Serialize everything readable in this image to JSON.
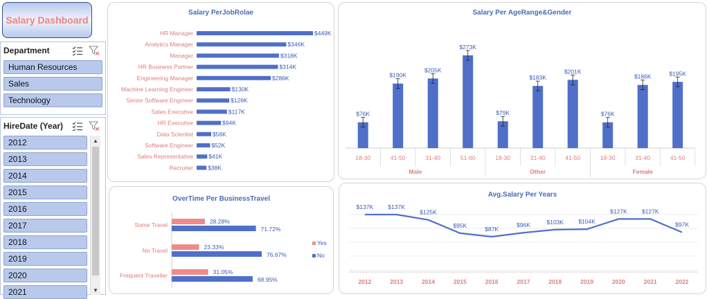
{
  "dashboard_title": "Salary Dashboard",
  "colors": {
    "blue": "#4f6fc8",
    "pink": "#f08a8a",
    "label_pink": "#e07b7b",
    "value_blue": "#3b5bb5"
  },
  "department_slicer": {
    "title": "Department",
    "items": [
      "Human Resources",
      "Sales",
      "Technology"
    ]
  },
  "hiredate_slicer": {
    "title": "HireDate (Year)",
    "items": [
      "2012",
      "2013",
      "2014",
      "2015",
      "2016",
      "2017",
      "2018",
      "2019",
      "2020",
      "2021"
    ]
  },
  "icons": {
    "multi_select": "multi-select-icon",
    "clear_filter": "clear-filter-icon"
  },
  "chart_data": [
    {
      "id": "job_role",
      "type": "bar",
      "orientation": "horizontal",
      "title": "Salary PerJobRolae",
      "categories": [
        "HR Manager",
        "Analytics Manager",
        "Manager",
        "HR Business Partner",
        "Engineering Manager",
        "Machine Learning Engineer",
        "Senior Software Engineer",
        "Sales Executive",
        "HR Executive",
        "Data Scientist",
        "Software Engineer",
        "Sales Representative",
        "Recruiter"
      ],
      "values": [
        449,
        346,
        318,
        314,
        286,
        130,
        126,
        117,
        94,
        56,
        52,
        41,
        38
      ],
      "value_labels": [
        "$449K",
        "$346K",
        "$318K",
        "$314K",
        "$286K",
        "$130K",
        "$126K",
        "$117K",
        "$94K",
        "$56K",
        "$52K",
        "$41K",
        "$38K"
      ]
    },
    {
      "id": "age_gender",
      "type": "bar",
      "title": "Salary Per AgeRange&Gender",
      "groups": [
        {
          "name": "Male",
          "categories": [
            "18-30",
            "41-50",
            "31-40",
            "51-60"
          ],
          "values": [
            76,
            190,
            205,
            273
          ],
          "value_labels": [
            "$76K",
            "$190K",
            "$205K",
            "$273K"
          ]
        },
        {
          "name": "Other",
          "categories": [
            "18-30",
            "31-40",
            "41-50"
          ],
          "values": [
            79,
            183,
            201
          ],
          "value_labels": [
            "$79K",
            "$183K",
            "$201K"
          ]
        },
        {
          "name": "Female",
          "categories": [
            "18-30",
            "31-40",
            "41-50"
          ],
          "values": [
            76,
            186,
            195
          ],
          "value_labels": [
            "$76K",
            "$186K",
            "$195K"
          ]
        }
      ],
      "error_bars": true
    },
    {
      "id": "overtime",
      "type": "bar",
      "orientation": "horizontal",
      "title": "OverTime Per BusinessTravel",
      "categories": [
        "Some Travel",
        "No Travel",
        "Frequent Traveller"
      ],
      "series": [
        {
          "name": "Yes",
          "values": [
            28.28,
            23.33,
            31.05
          ],
          "value_labels": [
            "28.28%",
            "23.33%",
            "31.05%"
          ]
        },
        {
          "name": "No",
          "values": [
            71.72,
            76.67,
            68.95
          ],
          "value_labels": [
            "71.72%",
            "76.67%",
            "68.95%"
          ]
        }
      ],
      "legend": "right"
    },
    {
      "id": "avg_salary",
      "type": "line",
      "title": "Avg.Salary Per Years",
      "x": [
        "2012",
        "2013",
        "2014",
        "2015",
        "2016",
        "2017",
        "2018",
        "2019",
        "2020",
        "2021",
        "2022"
      ],
      "values": [
        137,
        137,
        125,
        95,
        87,
        96,
        103,
        104,
        127,
        127,
        97
      ],
      "value_labels": [
        "$137K",
        "$137K",
        "$125K",
        "$95K",
        "$87K",
        "$96K",
        "$103K",
        "$104K",
        "$127K",
        "$127K",
        "$97K"
      ]
    }
  ]
}
